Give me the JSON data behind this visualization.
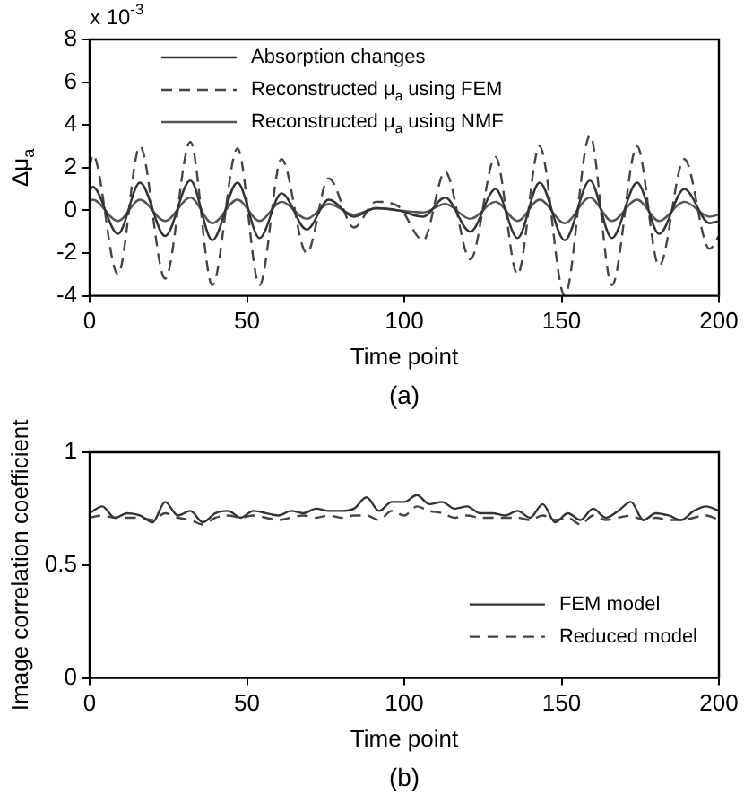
{
  "chart_data": [
    {
      "type": "line",
      "title": "(a)",
      "xlabel": "Time point",
      "ylabel": "Δμ$_{a}$",
      "annotations": [
        "x 10$^{-3}$"
      ],
      "x": [
        0,
        1,
        9,
        16,
        24,
        32,
        39,
        47,
        54,
        61,
        69,
        76,
        84,
        91,
        98,
        106,
        113,
        121,
        129,
        136,
        143,
        151,
        159,
        166,
        174,
        181,
        189,
        197,
        200
      ],
      "series": [
        {
          "name": "Absorption changes",
          "color": "#333333",
          "line_style": "solid",
          "values": [
            0.9,
            1.1,
            -1.1,
            1.3,
            -1.2,
            1.4,
            -1.4,
            1.3,
            -1.3,
            0.8,
            -0.9,
            0.5,
            -0.3,
            0.1,
            0,
            -0.3,
            0.6,
            -1.0,
            1.0,
            -1.3,
            1.3,
            -1.4,
            1.4,
            -1.3,
            1.3,
            -1.1,
            1.0,
            -0.6,
            -0.5
          ]
        },
        {
          "name": "Reconstructed μ$_{a}$ using FEM",
          "color": "#444444",
          "line_style": "dashed",
          "values": [
            2.0,
            2.6,
            -3.0,
            3.0,
            -3.2,
            3.2,
            -3.5,
            2.9,
            -3.5,
            2.4,
            -2.0,
            1.5,
            -0.8,
            0.4,
            0.2,
            -1.4,
            1.8,
            -2.3,
            2.5,
            -3.0,
            3.0,
            -4.0,
            3.5,
            -3.5,
            3.0,
            -2.6,
            2.4,
            -1.8,
            -1.2
          ]
        },
        {
          "name": "Reconstructed μ$_{a}$ using NMF",
          "color": "#555555",
          "line_style": "solid",
          "values": [
            0.4,
            0.5,
            -0.5,
            0.5,
            -0.5,
            0.6,
            -0.6,
            0.5,
            -0.5,
            0.4,
            -0.4,
            0.3,
            -0.2,
            0.1,
            0,
            -0.1,
            0.3,
            -0.4,
            0.4,
            -0.5,
            0.5,
            -0.6,
            0.6,
            -0.5,
            0.5,
            -0.5,
            0.4,
            -0.3,
            -0.2
          ]
        }
      ],
      "xlim": [
        0,
        200
      ],
      "xticks": [
        0,
        50,
        100,
        150,
        200
      ],
      "ylim": [
        -4,
        8
      ],
      "yticks": [
        -4,
        -2,
        0,
        2,
        4,
        6,
        8
      ],
      "legend": "top left",
      "marker": "none"
    },
    {
      "type": "line",
      "title": "(b)",
      "xlabel": "Time point",
      "ylabel": "Image correlation coefficient",
      "x": [
        0,
        4,
        8,
        12,
        16,
        20,
        24,
        28,
        32,
        36,
        40,
        44,
        48,
        52,
        56,
        60,
        64,
        68,
        72,
        76,
        80,
        84,
        88,
        92,
        96,
        100,
        104,
        108,
        112,
        116,
        120,
        124,
        128,
        132,
        136,
        140,
        144,
        148,
        152,
        156,
        160,
        164,
        168,
        172,
        176,
        180,
        184,
        188,
        192,
        196,
        200
      ],
      "series": [
        {
          "name": "FEM model",
          "color": "#333333",
          "line_style": "solid",
          "values": [
            0.73,
            0.76,
            0.71,
            0.73,
            0.72,
            0.69,
            0.78,
            0.72,
            0.74,
            0.69,
            0.73,
            0.74,
            0.71,
            0.74,
            0.73,
            0.72,
            0.74,
            0.73,
            0.75,
            0.74,
            0.74,
            0.75,
            0.8,
            0.74,
            0.78,
            0.78,
            0.81,
            0.77,
            0.78,
            0.75,
            0.76,
            0.73,
            0.73,
            0.72,
            0.74,
            0.71,
            0.77,
            0.69,
            0.73,
            0.7,
            0.75,
            0.71,
            0.74,
            0.78,
            0.7,
            0.73,
            0.72,
            0.7,
            0.74,
            0.76,
            0.74
          ]
        },
        {
          "name": "Reduced model",
          "color": "#444444",
          "line_style": "dashed",
          "values": [
            0.71,
            0.72,
            0.71,
            0.71,
            0.71,
            0.7,
            0.73,
            0.71,
            0.7,
            0.68,
            0.71,
            0.72,
            0.71,
            0.72,
            0.71,
            0.7,
            0.71,
            0.72,
            0.71,
            0.72,
            0.71,
            0.72,
            0.72,
            0.7,
            0.74,
            0.72,
            0.76,
            0.74,
            0.73,
            0.71,
            0.72,
            0.71,
            0.71,
            0.71,
            0.71,
            0.7,
            0.72,
            0.7,
            0.71,
            0.68,
            0.72,
            0.7,
            0.71,
            0.72,
            0.7,
            0.71,
            0.7,
            0.7,
            0.71,
            0.72,
            0.7
          ]
        }
      ],
      "xlim": [
        0,
        200
      ],
      "xticks": [
        0,
        50,
        100,
        150,
        200
      ],
      "ylim": [
        0,
        1
      ],
      "yticks": [
        0,
        0.5,
        1
      ],
      "legend": "bottom right",
      "marker": "none"
    }
  ]
}
